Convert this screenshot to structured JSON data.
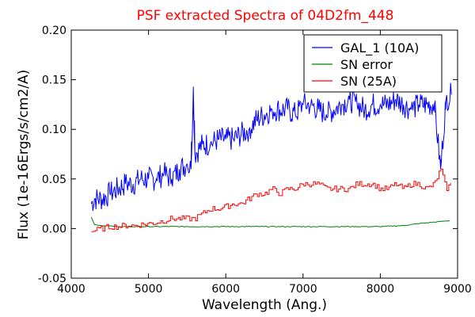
{
  "chart_data": {
    "type": "line",
    "title": "PSF extracted Spectra of 04D2fm_448",
    "title_color": "#ff0000",
    "xlabel": "Wavelength (Ang.)",
    "ylabel": "Flux (1e-16Ergs/s/cm2/A)",
    "xlim": [
      4000,
      9000
    ],
    "ylim": [
      -0.05,
      0.2
    ],
    "x_ticks": [
      4000,
      5000,
      6000,
      7000,
      8000,
      9000
    ],
    "y_ticks": [
      -0.05,
      0.0,
      0.05,
      0.1,
      0.15,
      0.2
    ],
    "x_tick_labels": [
      "4000",
      "5000",
      "6000",
      "7000",
      "8000",
      "9000"
    ],
    "y_tick_labels": [
      "-0.05",
      "0.00",
      "0.05",
      "0.10",
      "0.15",
      "0.20"
    ],
    "grid": false,
    "legend_position": "top-right",
    "series": [
      {
        "name": "GAL_1 (10A)",
        "color": "#0000ff",
        "style": "noisy",
        "x": [
          4260,
          4300,
          4400,
          4500,
          4600,
          4700,
          4800,
          4900,
          5000,
          5100,
          5200,
          5300,
          5400,
          5500,
          5550,
          5580,
          5600,
          5700,
          5800,
          5900,
          6000,
          6100,
          6200,
          6300,
          6400,
          6500,
          6600,
          6700,
          6800,
          6900,
          7000,
          7100,
          7200,
          7300,
          7400,
          7500,
          7600,
          7700,
          7800,
          7900,
          8000,
          8100,
          8200,
          8300,
          8400,
          8500,
          8600,
          8700,
          8780,
          8850,
          8920
        ],
        "y": [
          0.025,
          0.03,
          0.03,
          0.035,
          0.04,
          0.045,
          0.045,
          0.05,
          0.05,
          0.05,
          0.055,
          0.05,
          0.06,
          0.065,
          0.06,
          0.143,
          0.075,
          0.085,
          0.085,
          0.09,
          0.09,
          0.09,
          0.095,
          0.1,
          0.11,
          0.115,
          0.12,
          0.12,
          0.12,
          0.115,
          0.125,
          0.125,
          0.12,
          0.115,
          0.12,
          0.125,
          0.13,
          0.125,
          0.12,
          0.125,
          0.125,
          0.125,
          0.13,
          0.125,
          0.12,
          0.125,
          0.125,
          0.125,
          0.06,
          0.13,
          0.135
        ]
      },
      {
        "name": "SN error",
        "color": "#008000",
        "style": "smooth",
        "x": [
          4260,
          4300,
          4400,
          4600,
          5000,
          6000,
          7000,
          8000,
          8300,
          8500,
          8900
        ],
        "y": [
          0.012,
          0.004,
          0.003,
          0.002,
          0.002,
          0.002,
          0.002,
          0.002,
          0.003,
          0.005,
          0.008
        ]
      },
      {
        "name": "SN (25A)",
        "color": "#ff0000",
        "style": "step",
        "x": [
          4260,
          4300,
          4400,
          4500,
          4600,
          4700,
          4800,
          4900,
          5000,
          5100,
          5200,
          5300,
          5400,
          5500,
          5600,
          5700,
          5800,
          5900,
          6000,
          6100,
          6200,
          6300,
          6400,
          6500,
          6600,
          6700,
          6800,
          6900,
          7000,
          7100,
          7200,
          7300,
          7400,
          7500,
          7600,
          7700,
          7800,
          7900,
          8000,
          8100,
          8200,
          8300,
          8400,
          8500,
          8600,
          8700,
          8780,
          8850,
          8920
        ],
        "y": [
          -0.003,
          -0.002,
          0.0,
          0.002,
          0.002,
          0.003,
          0.003,
          0.004,
          0.005,
          0.006,
          0.008,
          0.01,
          0.01,
          0.01,
          0.01,
          0.015,
          0.02,
          0.02,
          0.022,
          0.025,
          0.025,
          0.03,
          0.035,
          0.035,
          0.04,
          0.035,
          0.04,
          0.04,
          0.045,
          0.045,
          0.045,
          0.04,
          0.04,
          0.04,
          0.04,
          0.045,
          0.045,
          0.045,
          0.04,
          0.04,
          0.045,
          0.04,
          0.045,
          0.045,
          0.04,
          0.045,
          0.06,
          0.04,
          0.045
        ]
      }
    ]
  }
}
